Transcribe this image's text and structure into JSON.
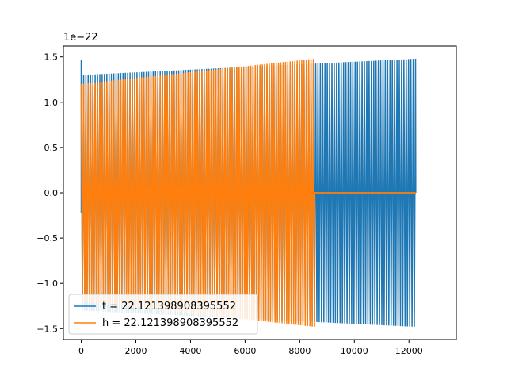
{
  "chart_data": {
    "type": "line",
    "title": "",
    "xlabel": "",
    "ylabel": "",
    "offset_label": "1e−22",
    "xlim": [
      -654,
      13734
    ],
    "ylim": [
      -1.62,
      1.62
    ],
    "x_ticks": [
      0,
      2000,
      4000,
      6000,
      8000,
      10000,
      12000
    ],
    "x_tick_labels": [
      "0",
      "2000",
      "4000",
      "6000",
      "8000",
      "10000",
      "12000"
    ],
    "y_ticks": [
      -1.5,
      -1.0,
      -0.5,
      0.0,
      0.5,
      1.0,
      1.5
    ],
    "y_tick_labels": [
      "−1.5",
      "−1.0",
      "−0.5",
      "0.0",
      "0.5",
      "1.0",
      "1.5"
    ],
    "grid": false,
    "legend_position": "lower-left",
    "series": [
      {
        "name": "t = 22.121398908395552",
        "color": "#1f77b4",
        "signal": {
          "kind": "chirp",
          "x_start": 0,
          "x_end": 12250,
          "amp_start": 1.3,
          "amp_end": 1.48,
          "cycles_flat_spacing": 85,
          "active_range": [
            0,
            12250
          ],
          "initial_spike": [
            1.47,
            -0.22
          ]
        }
      },
      {
        "name": "h = 22.121398908395552",
        "color": "#ff7f0e",
        "signal": {
          "kind": "chirp",
          "x_start": 0,
          "x_end": 8550,
          "amp_start": 1.2,
          "amp_end": 1.48,
          "cycles_flat_spacing": 85,
          "active_range": [
            0,
            8550
          ],
          "tail_until": 12250
        }
      }
    ]
  }
}
